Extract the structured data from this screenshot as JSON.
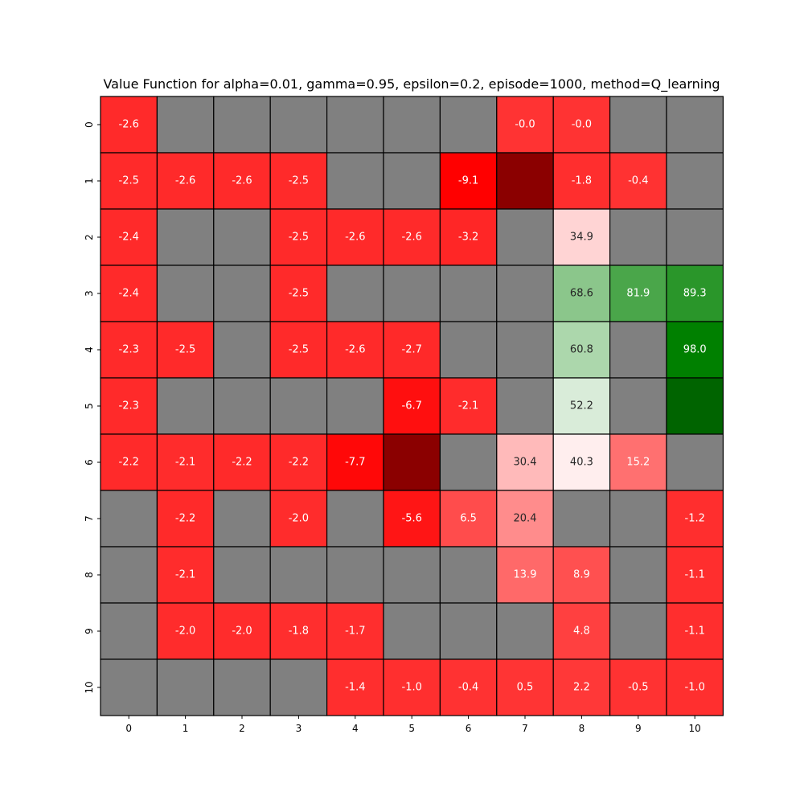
{
  "chart_data": {
    "type": "heatmap",
    "title": "Value Function for alpha=0.01, gamma=0.95, epsilon=0.2, episode=1000, method=Q_learning",
    "x_tick_labels": [
      "0",
      "1",
      "2",
      "3",
      "4",
      "5",
      "6",
      "7",
      "8",
      "9",
      "10"
    ],
    "y_tick_labels": [
      "0",
      "1",
      "2",
      "3",
      "4",
      "5",
      "6",
      "7",
      "8",
      "9",
      "10"
    ],
    "grid": true,
    "colors": {
      "wall": "#808080",
      "cell_border": "#000000",
      "text_light": "#ffffff",
      "text_dark": "#262626"
    },
    "cells": [
      [
        {
          "label": "-2.6",
          "fill": "#ff2a2a"
        },
        {
          "fill": "#808080"
        },
        {
          "fill": "#808080"
        },
        {
          "fill": "#808080"
        },
        {
          "fill": "#808080"
        },
        {
          "fill": "#808080"
        },
        {
          "fill": "#808080"
        },
        {
          "label": "-0.0",
          "fill": "#ff3333"
        },
        {
          "label": "-0.0",
          "fill": "#ff3333"
        },
        {
          "fill": "#808080"
        },
        {
          "fill": "#808080"
        }
      ],
      [
        {
          "label": "-2.5",
          "fill": "#ff2a2a"
        },
        {
          "label": "-2.6",
          "fill": "#ff2a2a"
        },
        {
          "label": "-2.6",
          "fill": "#ff2a2a"
        },
        {
          "label": "-2.5",
          "fill": "#ff2a2a"
        },
        {
          "fill": "#808080"
        },
        {
          "fill": "#808080"
        },
        {
          "label": "-9.1",
          "fill": "#ff0000"
        },
        {
          "fill": "#8b0000"
        },
        {
          "label": "-1.8",
          "fill": "#ff2e2e"
        },
        {
          "label": "-0.4",
          "fill": "#ff3232"
        },
        {
          "fill": "#808080"
        }
      ],
      [
        {
          "label": "-2.4",
          "fill": "#ff2a2a"
        },
        {
          "fill": "#808080"
        },
        {
          "fill": "#808080"
        },
        {
          "label": "-2.5",
          "fill": "#ff2a2a"
        },
        {
          "label": "-2.6",
          "fill": "#ff2a2a"
        },
        {
          "label": "-2.6",
          "fill": "#ff2a2a"
        },
        {
          "label": "-3.2",
          "fill": "#ff2626"
        },
        {
          "fill": "#808080"
        },
        {
          "label": "34.9",
          "fill": "#ffd4d4",
          "dark": true
        },
        {
          "fill": "#808080"
        },
        {
          "fill": "#808080"
        }
      ],
      [
        {
          "label": "-2.4",
          "fill": "#ff2a2a"
        },
        {
          "fill": "#808080"
        },
        {
          "fill": "#808080"
        },
        {
          "label": "-2.5",
          "fill": "#ff2a2a"
        },
        {
          "fill": "#808080"
        },
        {
          "fill": "#808080"
        },
        {
          "fill": "#808080"
        },
        {
          "fill": "#808080"
        },
        {
          "label": "68.6",
          "fill": "#8bc68b",
          "dark": true
        },
        {
          "label": "81.9",
          "fill": "#4aa64a"
        },
        {
          "label": "89.3",
          "fill": "#2a962a"
        }
      ],
      [
        {
          "label": "-2.3",
          "fill": "#ff2a2a"
        },
        {
          "label": "-2.5",
          "fill": "#ff2a2a"
        },
        {
          "fill": "#808080"
        },
        {
          "label": "-2.5",
          "fill": "#ff2a2a"
        },
        {
          "label": "-2.6",
          "fill": "#ff2a2a"
        },
        {
          "label": "-2.7",
          "fill": "#ff2929"
        },
        {
          "fill": "#808080"
        },
        {
          "fill": "#808080"
        },
        {
          "label": "60.8",
          "fill": "#acd7ac",
          "dark": true
        },
        {
          "fill": "#808080"
        },
        {
          "label": "98.0",
          "fill": "#008000"
        }
      ],
      [
        {
          "label": "-2.3",
          "fill": "#ff2a2a"
        },
        {
          "fill": "#808080"
        },
        {
          "fill": "#808080"
        },
        {
          "fill": "#808080"
        },
        {
          "fill": "#808080"
        },
        {
          "label": "-6.7",
          "fill": "#ff0f0f"
        },
        {
          "label": "-2.1",
          "fill": "#ff2c2c"
        },
        {
          "fill": "#808080"
        },
        {
          "label": "52.2",
          "fill": "#d9ecd9",
          "dark": true
        },
        {
          "fill": "#808080"
        },
        {
          "fill": "#006400"
        }
      ],
      [
        {
          "label": "-2.2",
          "fill": "#ff2a2a"
        },
        {
          "label": "-2.1",
          "fill": "#ff2c2c"
        },
        {
          "label": "-2.2",
          "fill": "#ff2a2a"
        },
        {
          "label": "-2.2",
          "fill": "#ff2a2a"
        },
        {
          "label": "-7.7",
          "fill": "#ff0808"
        },
        {
          "fill": "#8b0000"
        },
        {
          "fill": "#808080"
        },
        {
          "label": "30.4",
          "fill": "#ffbaba",
          "dark": true
        },
        {
          "label": "40.3",
          "fill": "#ffeeee",
          "dark": true
        },
        {
          "label": "15.2",
          "fill": "#ff7070"
        },
        {
          "fill": "#808080"
        }
      ],
      [
        {
          "fill": "#808080"
        },
        {
          "label": "-2.2",
          "fill": "#ff2a2a"
        },
        {
          "fill": "#808080"
        },
        {
          "label": "-2.0",
          "fill": "#ff2c2c"
        },
        {
          "fill": "#808080"
        },
        {
          "label": "-5.6",
          "fill": "#ff1515"
        },
        {
          "label": "6.5",
          "fill": "#ff4c4c"
        },
        {
          "label": "20.4",
          "fill": "#ff8c8c",
          "dark": true
        },
        {
          "fill": "#808080"
        },
        {
          "fill": "#808080"
        },
        {
          "label": "-1.2",
          "fill": "#ff2e2e"
        }
      ],
      [
        {
          "fill": "#808080"
        },
        {
          "label": "-2.1",
          "fill": "#ff2c2c"
        },
        {
          "fill": "#808080"
        },
        {
          "fill": "#808080"
        },
        {
          "fill": "#808080"
        },
        {
          "fill": "#808080"
        },
        {
          "fill": "#808080"
        },
        {
          "label": "13.9",
          "fill": "#ff6969"
        },
        {
          "label": "8.9",
          "fill": "#ff5050"
        },
        {
          "fill": "#808080"
        },
        {
          "label": "-1.1",
          "fill": "#ff2e2e"
        }
      ],
      [
        {
          "fill": "#808080"
        },
        {
          "label": "-2.0",
          "fill": "#ff2c2c"
        },
        {
          "label": "-2.0",
          "fill": "#ff2c2c"
        },
        {
          "label": "-1.8",
          "fill": "#ff2e2e"
        },
        {
          "label": "-1.7",
          "fill": "#ff2e2e"
        },
        {
          "fill": "#808080"
        },
        {
          "fill": "#808080"
        },
        {
          "fill": "#808080"
        },
        {
          "label": "4.8",
          "fill": "#ff4040"
        },
        {
          "fill": "#808080"
        },
        {
          "label": "-1.1",
          "fill": "#ff2e2e"
        }
      ],
      [
        {
          "fill": "#808080"
        },
        {
          "fill": "#808080"
        },
        {
          "fill": "#808080"
        },
        {
          "fill": "#808080"
        },
        {
          "label": "-1.4",
          "fill": "#ff2e2e"
        },
        {
          "label": "-1.0",
          "fill": "#ff2f2f"
        },
        {
          "label": "-0.4",
          "fill": "#ff3232"
        },
        {
          "label": "0.5",
          "fill": "#ff3434"
        },
        {
          "label": "2.2",
          "fill": "#ff3838"
        },
        {
          "label": "-0.5",
          "fill": "#ff3232"
        },
        {
          "label": "-1.0",
          "fill": "#ff2f2f"
        }
      ]
    ]
  }
}
